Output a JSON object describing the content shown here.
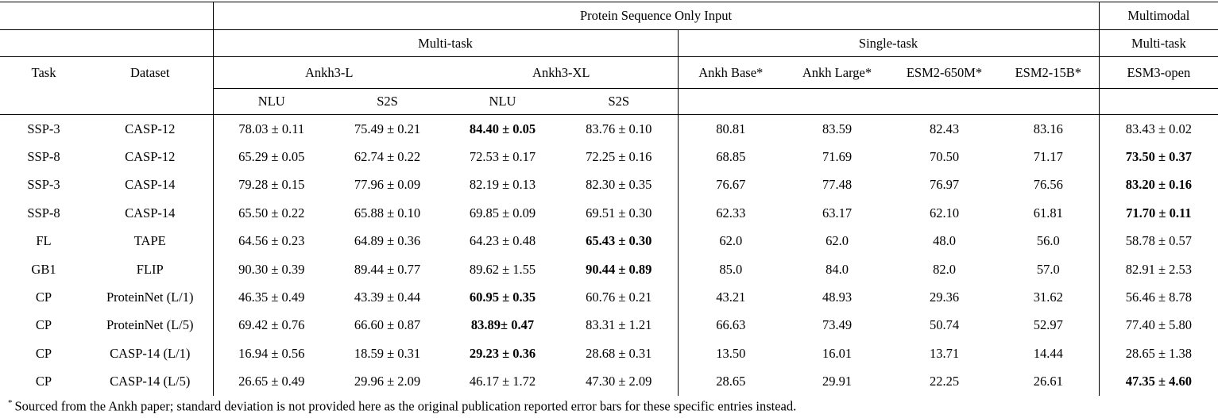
{
  "table": {
    "header": {
      "protein_seq_group": "Protein Sequence Only Input",
      "multimodal_group": "Multimodal",
      "multi_task_left": "Multi-task",
      "single_task": "Single-task",
      "multi_task_right": "Multi-task",
      "task": "Task",
      "dataset": "Dataset",
      "ankh3_l": "Ankh3-L",
      "ankh3_xl": "Ankh3-XL",
      "ankh_base": "Ankh Base*",
      "ankh_large": "Ankh Large*",
      "esm2_650m": "ESM2-650M*",
      "esm2_15b": "ESM2-15B*",
      "esm3_open": "ESM3-open",
      "sub": {
        "nlu1": "NLU",
        "s2s1": "S2S",
        "nlu2": "NLU",
        "s2s2": "S2S"
      }
    },
    "rows": [
      {
        "task": "SSP-3",
        "dataset": "CASP-12",
        "values": [
          {
            "text": "78.03 ± 0.11",
            "bold": false
          },
          {
            "text": "75.49 ± 0.21",
            "bold": false
          },
          {
            "text": "84.40 ± 0.05",
            "bold": true
          },
          {
            "text": "83.76 ± 0.10",
            "bold": false
          },
          {
            "text": "80.81",
            "bold": false
          },
          {
            "text": "83.59",
            "bold": false
          },
          {
            "text": "82.43",
            "bold": false
          },
          {
            "text": "83.16",
            "bold": false
          },
          {
            "text": "83.43 ± 0.02",
            "bold": false
          }
        ]
      },
      {
        "task": "SSP-8",
        "dataset": "CASP-12",
        "values": [
          {
            "text": "65.29 ± 0.05",
            "bold": false
          },
          {
            "text": "62.74 ± 0.22",
            "bold": false
          },
          {
            "text": "72.53 ± 0.17",
            "bold": false
          },
          {
            "text": "72.25 ± 0.16",
            "bold": false
          },
          {
            "text": "68.85",
            "bold": false
          },
          {
            "text": "71.69",
            "bold": false
          },
          {
            "text": "70.50",
            "bold": false
          },
          {
            "text": "71.17",
            "bold": false
          },
          {
            "text": "73.50 ± 0.37",
            "bold": true
          }
        ]
      },
      {
        "task": "SSP-3",
        "dataset": "CASP-14",
        "values": [
          {
            "text": "79.28 ± 0.15",
            "bold": false
          },
          {
            "text": "77.96 ± 0.09",
            "bold": false
          },
          {
            "text": "82.19 ± 0.13",
            "bold": false
          },
          {
            "text": "82.30 ± 0.35",
            "bold": false
          },
          {
            "text": "76.67",
            "bold": false
          },
          {
            "text": "77.48",
            "bold": false
          },
          {
            "text": "76.97",
            "bold": false
          },
          {
            "text": "76.56",
            "bold": false
          },
          {
            "text": "83.20 ± 0.16",
            "bold": true
          }
        ]
      },
      {
        "task": "SSP-8",
        "dataset": "CASP-14",
        "values": [
          {
            "text": "65.50 ± 0.22",
            "bold": false
          },
          {
            "text": "65.88 ± 0.10",
            "bold": false
          },
          {
            "text": "69.85 ± 0.09",
            "bold": false
          },
          {
            "text": "69.51 ± 0.30",
            "bold": false
          },
          {
            "text": "62.33",
            "bold": false
          },
          {
            "text": "63.17",
            "bold": false
          },
          {
            "text": "62.10",
            "bold": false
          },
          {
            "text": "61.81",
            "bold": false
          },
          {
            "text": "71.70 ± 0.11",
            "bold": true
          }
        ]
      },
      {
        "task": "FL",
        "dataset": "TAPE",
        "values": [
          {
            "text": "64.56 ± 0.23",
            "bold": false
          },
          {
            "text": "64.89 ± 0.36",
            "bold": false
          },
          {
            "text": "64.23 ± 0.48",
            "bold": false
          },
          {
            "text": "65.43 ± 0.30",
            "bold": true
          },
          {
            "text": "62.0",
            "bold": false
          },
          {
            "text": "62.0",
            "bold": false
          },
          {
            "text": "48.0",
            "bold": false
          },
          {
            "text": "56.0",
            "bold": false
          },
          {
            "text": "58.78 ± 0.57",
            "bold": false
          }
        ]
      },
      {
        "task": "GB1",
        "dataset": "FLIP",
        "values": [
          {
            "text": "90.30 ± 0.39",
            "bold": false
          },
          {
            "text": "89.44 ± 0.77",
            "bold": false
          },
          {
            "text": "89.62 ± 1.55",
            "bold": false
          },
          {
            "text": "90.44 ± 0.89",
            "bold": true
          },
          {
            "text": "85.0",
            "bold": false
          },
          {
            "text": "84.0",
            "bold": false
          },
          {
            "text": "82.0",
            "bold": false
          },
          {
            "text": "57.0",
            "bold": false
          },
          {
            "text": "82.91 ± 2.53",
            "bold": false
          }
        ]
      },
      {
        "task": "CP",
        "dataset": "ProteinNet (L/1)",
        "values": [
          {
            "text": "46.35 ± 0.49",
            "bold": false
          },
          {
            "text": "43.39 ± 0.44",
            "bold": false
          },
          {
            "text": "60.95 ± 0.35",
            "bold": true
          },
          {
            "text": "60.76 ± 0.21",
            "bold": false
          },
          {
            "text": "43.21",
            "bold": false
          },
          {
            "text": "48.93",
            "bold": false
          },
          {
            "text": "29.36",
            "bold": false
          },
          {
            "text": "31.62",
            "bold": false
          },
          {
            "text": "56.46 ± 8.78",
            "bold": false
          }
        ]
      },
      {
        "task": "CP",
        "dataset": "ProteinNet (L/5)",
        "values": [
          {
            "text": "69.42 ± 0.76",
            "bold": false
          },
          {
            "text": "66.60 ± 0.87",
            "bold": false
          },
          {
            "text": "83.89± 0.47",
            "bold": true
          },
          {
            "text": "83.31 ± 1.21",
            "bold": false
          },
          {
            "text": "66.63",
            "bold": false
          },
          {
            "text": "73.49",
            "bold": false
          },
          {
            "text": "50.74",
            "bold": false
          },
          {
            "text": "52.97",
            "bold": false
          },
          {
            "text": "77.40 ± 5.80",
            "bold": false
          }
        ]
      },
      {
        "task": "CP",
        "dataset": "CASP-14 (L/1)",
        "values": [
          {
            "text": "16.94 ± 0.56",
            "bold": false
          },
          {
            "text": "18.59 ± 0.31",
            "bold": false
          },
          {
            "text": "29.23 ± 0.36",
            "bold": true
          },
          {
            "text": "28.68 ± 0.31",
            "bold": false
          },
          {
            "text": "13.50",
            "bold": false
          },
          {
            "text": "16.01",
            "bold": false
          },
          {
            "text": "13.71",
            "bold": false
          },
          {
            "text": "14.44",
            "bold": false
          },
          {
            "text": "28.65 ± 1.38",
            "bold": false
          }
        ]
      },
      {
        "task": "CP",
        "dataset": "CASP-14 (L/5)",
        "values": [
          {
            "text": "26.65 ± 0.49",
            "bold": false
          },
          {
            "text": "29.96 ± 2.09",
            "bold": false
          },
          {
            "text": "46.17 ± 1.72",
            "bold": false
          },
          {
            "text": "47.30 ± 2.09",
            "bold": false
          },
          {
            "text": "28.65",
            "bold": false
          },
          {
            "text": "29.91",
            "bold": false
          },
          {
            "text": "22.25",
            "bold": false
          },
          {
            "text": "26.61",
            "bold": false
          },
          {
            "text": "47.35 ± 4.60",
            "bold": true
          }
        ]
      }
    ]
  },
  "footnote": {
    "marker": "*",
    "text": "Sourced from the Ankh paper; standard deviation is not provided here as the original publication reported error bars for these specific entries instead."
  }
}
